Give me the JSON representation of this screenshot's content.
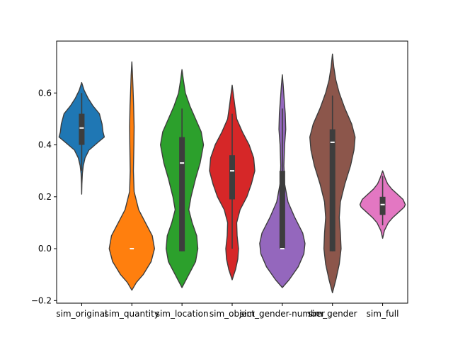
{
  "chart_data": {
    "type": "violin",
    "title": "",
    "xlabel": "",
    "ylabel": "",
    "ylim": [
      -0.21,
      0.8
    ],
    "yticks": [
      -0.2,
      0.0,
      0.2,
      0.4,
      0.6
    ],
    "ytick_labels": [
      "−0.2",
      "0.0",
      "0.2",
      "0.4",
      "0.6"
    ],
    "grid": false,
    "categories": [
      "sim_original",
      "sim_quantity",
      "sim_location",
      "sim_object",
      "sim_gender-number",
      "sim_gender",
      "sim_full"
    ],
    "series": [
      {
        "color": "#1f77b4",
        "range": [
          0.21,
          0.64
        ],
        "whisker": [
          0.3,
          0.6
        ],
        "box": [
          0.4,
          0.52
        ],
        "median": 0.465,
        "profile": [
          [
            0.21,
            0.0
          ],
          [
            0.25,
            0.01
          ],
          [
            0.29,
            0.03
          ],
          [
            0.32,
            0.07
          ],
          [
            0.35,
            0.15
          ],
          [
            0.38,
            0.32
          ],
          [
            0.41,
            0.72
          ],
          [
            0.43,
            1.0
          ],
          [
            0.45,
            0.94
          ],
          [
            0.48,
            0.9
          ],
          [
            0.52,
            0.78
          ],
          [
            0.55,
            0.5
          ],
          [
            0.58,
            0.28
          ],
          [
            0.61,
            0.11
          ],
          [
            0.64,
            0.0
          ]
        ]
      },
      {
        "color": "#ff7f0e",
        "range": [
          -0.16,
          0.72
        ],
        "whisker": [
          0.0,
          0.0
        ],
        "box": [
          0.0,
          0.0
        ],
        "median": 0.0,
        "profile": [
          [
            -0.16,
            0.0
          ],
          [
            -0.13,
            0.2
          ],
          [
            -0.1,
            0.5
          ],
          [
            -0.05,
            0.85
          ],
          [
            0.0,
            1.0
          ],
          [
            0.05,
            0.9
          ],
          [
            0.1,
            0.6
          ],
          [
            0.15,
            0.3
          ],
          [
            0.22,
            0.1
          ],
          [
            0.3,
            0.07
          ],
          [
            0.4,
            0.09
          ],
          [
            0.47,
            0.1
          ],
          [
            0.55,
            0.08
          ],
          [
            0.62,
            0.05
          ],
          [
            0.67,
            0.03
          ],
          [
            0.72,
            0.0
          ]
        ]
      },
      {
        "color": "#2ca02c",
        "range": [
          -0.15,
          0.69
        ],
        "whisker": [
          -0.01,
          0.54
        ],
        "box": [
          -0.01,
          0.43
        ],
        "median": 0.33,
        "profile": [
          [
            -0.15,
            0.0
          ],
          [
            -0.1,
            0.3
          ],
          [
            -0.05,
            0.6
          ],
          [
            0.0,
            0.7
          ],
          [
            0.05,
            0.65
          ],
          [
            0.1,
            0.45
          ],
          [
            0.15,
            0.3
          ],
          [
            0.2,
            0.4
          ],
          [
            0.27,
            0.6
          ],
          [
            0.33,
            0.8
          ],
          [
            0.4,
            0.95
          ],
          [
            0.45,
            0.85
          ],
          [
            0.5,
            0.6
          ],
          [
            0.55,
            0.35
          ],
          [
            0.6,
            0.15
          ],
          [
            0.65,
            0.06
          ],
          [
            0.69,
            0.0
          ]
        ]
      },
      {
        "color": "#d62728",
        "range": [
          -0.12,
          0.63
        ],
        "whisker": [
          0.0,
          0.52
        ],
        "box": [
          0.19,
          0.36
        ],
        "median": 0.3,
        "profile": [
          [
            -0.12,
            0.0
          ],
          [
            -0.08,
            0.15
          ],
          [
            -0.04,
            0.25
          ],
          [
            0.0,
            0.28
          ],
          [
            0.05,
            0.22
          ],
          [
            0.1,
            0.2
          ],
          [
            0.15,
            0.35
          ],
          [
            0.2,
            0.65
          ],
          [
            0.25,
            0.85
          ],
          [
            0.3,
            1.0
          ],
          [
            0.35,
            0.95
          ],
          [
            0.4,
            0.75
          ],
          [
            0.45,
            0.45
          ],
          [
            0.5,
            0.2
          ],
          [
            0.55,
            0.12
          ],
          [
            0.59,
            0.06
          ],
          [
            0.63,
            0.0
          ]
        ]
      },
      {
        "color": "#9467bd",
        "range": [
          -0.15,
          0.67
        ],
        "whisker": [
          0.0,
          0.54
        ],
        "box": [
          0.0,
          0.3
        ],
        "median": 0.0,
        "profile": [
          [
            -0.15,
            0.0
          ],
          [
            -0.12,
            0.3
          ],
          [
            -0.07,
            0.7
          ],
          [
            -0.02,
            0.95
          ],
          [
            0.02,
            1.0
          ],
          [
            0.06,
            0.9
          ],
          [
            0.12,
            0.55
          ],
          [
            0.18,
            0.25
          ],
          [
            0.25,
            0.1
          ],
          [
            0.32,
            0.07
          ],
          [
            0.4,
            0.1
          ],
          [
            0.46,
            0.15
          ],
          [
            0.52,
            0.13
          ],
          [
            0.58,
            0.08
          ],
          [
            0.63,
            0.04
          ],
          [
            0.67,
            0.0
          ]
        ]
      },
      {
        "color": "#8c564b",
        "range": [
          -0.17,
          0.75
        ],
        "whisker": [
          -0.01,
          0.59
        ],
        "box": [
          -0.01,
          0.46
        ],
        "median": 0.41,
        "profile": [
          [
            -0.17,
            0.0
          ],
          [
            -0.12,
            0.15
          ],
          [
            -0.06,
            0.3
          ],
          [
            0.0,
            0.38
          ],
          [
            0.06,
            0.35
          ],
          [
            0.12,
            0.3
          ],
          [
            0.18,
            0.35
          ],
          [
            0.25,
            0.55
          ],
          [
            0.32,
            0.8
          ],
          [
            0.38,
            0.95
          ],
          [
            0.43,
            1.0
          ],
          [
            0.48,
            0.85
          ],
          [
            0.54,
            0.55
          ],
          [
            0.6,
            0.3
          ],
          [
            0.65,
            0.15
          ],
          [
            0.7,
            0.06
          ],
          [
            0.75,
            0.0
          ]
        ]
      },
      {
        "color": "#e377c2",
        "range": [
          0.04,
          0.3
        ],
        "whisker": [
          0.09,
          0.28
        ],
        "box": [
          0.13,
          0.2
        ],
        "median": 0.17,
        "profile": [
          [
            0.04,
            0.0
          ],
          [
            0.07,
            0.08
          ],
          [
            0.1,
            0.25
          ],
          [
            0.12,
            0.45
          ],
          [
            0.14,
            0.7
          ],
          [
            0.16,
            0.95
          ],
          [
            0.17,
            1.0
          ],
          [
            0.19,
            0.9
          ],
          [
            0.21,
            0.65
          ],
          [
            0.23,
            0.4
          ],
          [
            0.25,
            0.22
          ],
          [
            0.27,
            0.12
          ],
          [
            0.3,
            0.0
          ]
        ]
      }
    ]
  }
}
